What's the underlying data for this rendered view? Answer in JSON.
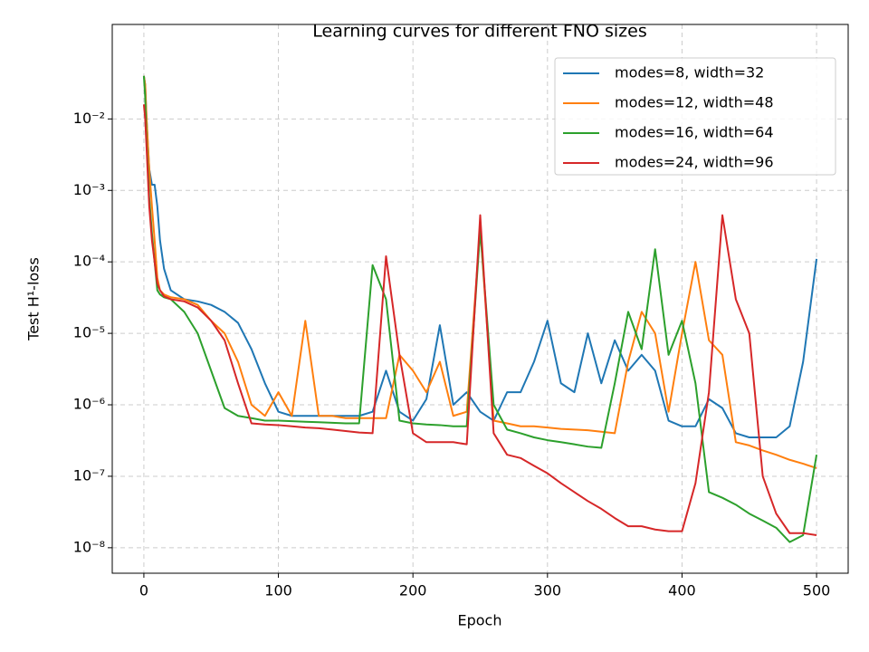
{
  "chart_data": {
    "type": "line",
    "title": "Learning curves for different FNO sizes",
    "xlabel": "Epoch",
    "ylabel": "Test H¹-loss",
    "yscale": "log",
    "grid": true,
    "legend": "upper right",
    "xlim": [
      -23.5,
      523.5
    ],
    "xticks": [
      0,
      100,
      200,
      300,
      400,
      500
    ],
    "ylim": [
      4.4e-09,
      0.21
    ],
    "yticks": [
      {
        "value": 1e-08,
        "label": "10⁻⁸"
      },
      {
        "value": 1e-07,
        "label": "10⁻⁷"
      },
      {
        "value": 1e-06,
        "label": "10⁻⁶"
      },
      {
        "value": 1e-05,
        "label": "10⁻⁵"
      },
      {
        "value": 0.0001,
        "label": "10⁻⁴"
      },
      {
        "value": 0.001,
        "label": "10⁻³"
      },
      {
        "value": 0.01,
        "label": "10⁻²"
      }
    ],
    "x": [
      0,
      1,
      2,
      4,
      6,
      8,
      10,
      12,
      15,
      20,
      30,
      40,
      50,
      60,
      70,
      80,
      90,
      100,
      110,
      120,
      130,
      140,
      150,
      160,
      170,
      180,
      190,
      200,
      210,
      220,
      230,
      240,
      250,
      260,
      270,
      280,
      290,
      300,
      310,
      320,
      330,
      340,
      350,
      360,
      370,
      380,
      390,
      400,
      410,
      420,
      430,
      440,
      450,
      460,
      470,
      480,
      490,
      500
    ],
    "series": [
      {
        "name": "modes=8, width=32",
        "color": "#1f77b4",
        "values": [
          0.04,
          0.03,
          0.01,
          0.002,
          0.0012,
          0.0012,
          0.0006,
          0.0002,
          8e-05,
          4e-05,
          3e-05,
          2.8e-05,
          2.5e-05,
          2e-05,
          1.4e-05,
          6e-06,
          2e-06,
          8e-07,
          7e-07,
          7e-07,
          7e-07,
          7e-07,
          7e-07,
          7e-07,
          8e-07,
          3e-06,
          8e-07,
          6e-07,
          1.2e-06,
          1.3e-05,
          1e-06,
          1.5e-06,
          8e-07,
          6e-07,
          1.5e-06,
          1.5e-06,
          4e-06,
          1.5e-05,
          2e-06,
          1.5e-06,
          1e-05,
          2e-06,
          8e-06,
          3e-06,
          5e-06,
          3e-06,
          6e-07,
          5e-07,
          5e-07,
          1.2e-06,
          9e-07,
          4e-07,
          3.5e-07,
          3.5e-07,
          3.5e-07,
          5e-07,
          4e-06,
          0.00011
        ]
      },
      {
        "name": "modes=12, width=48",
        "color": "#ff7f0e",
        "values": [
          0.04,
          0.03,
          0.01,
          0.002,
          0.0006,
          0.0002,
          6e-05,
          4e-05,
          3.5e-05,
          3.2e-05,
          3e-05,
          2.5e-05,
          1.5e-05,
          1e-05,
          4e-06,
          1e-06,
          7e-07,
          1.5e-06,
          7e-07,
          1.5e-05,
          7e-07,
          7e-07,
          6.5e-07,
          6.5e-07,
          6.5e-07,
          6.5e-07,
          5e-06,
          3e-06,
          1.5e-06,
          4e-06,
          7e-07,
          8e-07,
          0.0003,
          6e-07,
          5.5e-07,
          5e-07,
          5e-07,
          4.8e-07,
          4.6e-07,
          4.5e-07,
          4.4e-07,
          4.2e-07,
          4e-07,
          4e-06,
          2e-05,
          1e-05,
          8e-07,
          1e-05,
          0.0001,
          8e-06,
          5e-06,
          3e-07,
          2.7e-07,
          2.3e-07,
          2e-07,
          1.7e-07,
          1.5e-07,
          1.3e-07
        ]
      },
      {
        "name": "modes=16, width=64",
        "color": "#2ca02c",
        "values": [
          0.04,
          0.02,
          0.005,
          0.0008,
          0.00025,
          0.0001,
          4e-05,
          3.5e-05,
          3.2e-05,
          3e-05,
          2e-05,
          1e-05,
          3e-06,
          9e-07,
          7e-07,
          6.5e-07,
          6e-07,
          6e-07,
          5.9e-07,
          5.8e-07,
          5.7e-07,
          5.6e-07,
          5.5e-07,
          5.5e-07,
          9e-05,
          3e-05,
          6e-07,
          5.5e-07,
          5.3e-07,
          5.2e-07,
          5e-07,
          5e-07,
          0.00028,
          1e-06,
          4.5e-07,
          4e-07,
          3.5e-07,
          3.2e-07,
          3e-07,
          2.8e-07,
          2.6e-07,
          2.5e-07,
          2e-06,
          2e-05,
          6e-06,
          0.00015,
          5e-06,
          1.5e-05,
          2e-06,
          6e-08,
          5e-08,
          4e-08,
          3e-08,
          2.4e-08,
          1.9e-08,
          1.2e-08,
          1.5e-08,
          2e-07
        ]
      },
      {
        "name": "modes=24, width=96",
        "color": "#d62728",
        "values": [
          0.016,
          0.01,
          0.004,
          0.0006,
          0.0002,
          0.0001,
          5e-05,
          4e-05,
          3.3e-05,
          3e-05,
          2.8e-05,
          2.3e-05,
          1.5e-05,
          8e-06,
          2e-06,
          5.5e-07,
          5.3e-07,
          5.2e-07,
          5e-07,
          4.8e-07,
          4.7e-07,
          4.5e-07,
          4.3e-07,
          4.1e-07,
          4e-07,
          0.00012,
          5e-06,
          4e-07,
          3e-07,
          3e-07,
          3e-07,
          2.8e-07,
          0.00045,
          4e-07,
          2e-07,
          1.8e-07,
          1.4e-07,
          1.1e-07,
          8e-08,
          6e-08,
          4.5e-08,
          3.5e-08,
          2.6e-08,
          2e-08,
          2e-08,
          1.8e-08,
          1.7e-08,
          1.7e-08,
          8e-08,
          1.5e-06,
          0.00045,
          3e-05,
          1e-05,
          1e-07,
          3e-08,
          1.6e-08,
          1.6e-08,
          1.5e-08
        ]
      }
    ]
  }
}
